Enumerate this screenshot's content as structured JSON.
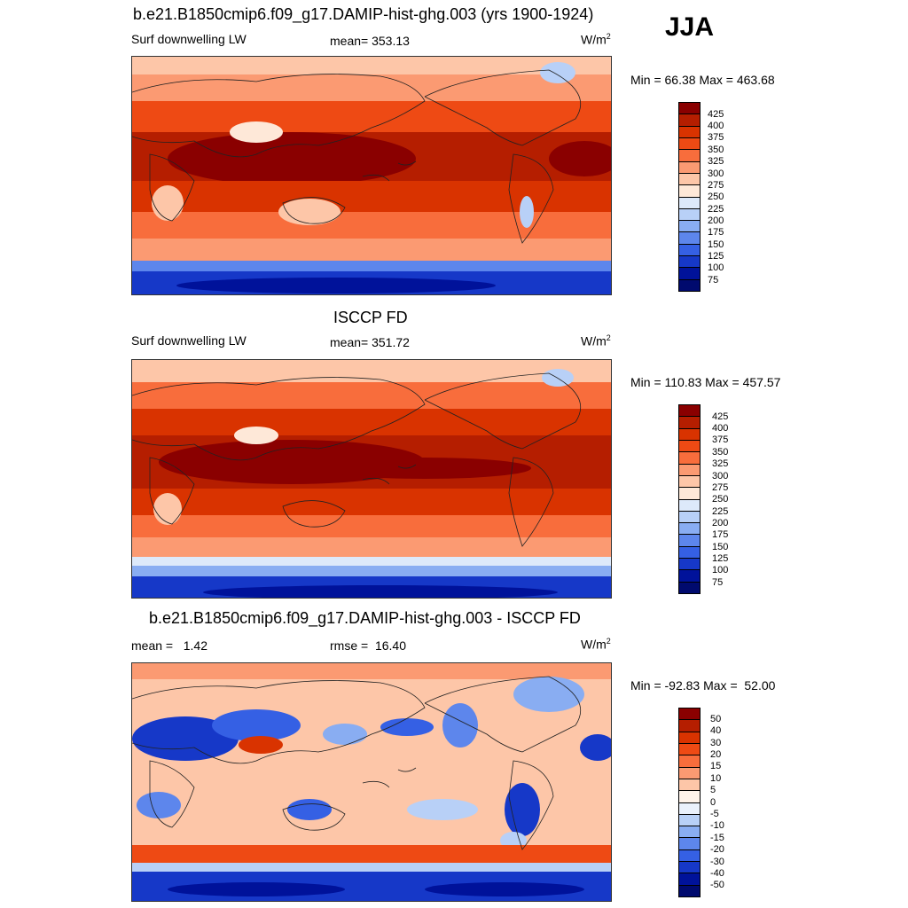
{
  "season": "JJA",
  "units_base": "W/m",
  "units_exp": "2",
  "panels": [
    {
      "title": "b.e21.B1850cmip6.f09_g17.DAMIP-hist-ghg.003 (yrs 1900-1924)",
      "left_label": "Surf downwelling LW",
      "center_label": "mean= 353.13",
      "minmax": "Min =  66.38 Max = 463.68",
      "colorbar_labels": [
        "425",
        "400",
        "375",
        "350",
        "325",
        "300",
        "275",
        "250",
        "225",
        "200",
        "175",
        "150",
        "125",
        "100",
        "75"
      ]
    },
    {
      "title": "ISCCP FD",
      "left_label": "Surf downwelling LW",
      "center_label": "mean= 351.72",
      "minmax": "Min = 110.83 Max = 457.57",
      "colorbar_labels": [
        "425",
        "400",
        "375",
        "350",
        "325",
        "300",
        "275",
        "250",
        "225",
        "200",
        "175",
        "150",
        "125",
        "100",
        "75"
      ]
    },
    {
      "title": "b.e21.B1850cmip6.f09_g17.DAMIP-hist-ghg.003 - ISCCP FD",
      "left_label": "mean =   1.42",
      "center_label": "rmse =  16.40",
      "minmax": "Min = -92.83 Max =  52.00",
      "colorbar_labels": [
        "50",
        "40",
        "30",
        "20",
        "15",
        "10",
        "5",
        "0",
        "-5",
        "-10",
        "-15",
        "-20",
        "-30",
        "-40",
        "-50"
      ]
    }
  ],
  "colors": {
    "abs_scale": [
      "#8a0000",
      "#b51e00",
      "#d93300",
      "#ee4a14",
      "#f86d3c",
      "#fb9a72",
      "#fdc6a8",
      "#fee8d8",
      "#dde9fa",
      "#b8d0f7",
      "#89adf2",
      "#5d86ec",
      "#3560e4",
      "#1638c8",
      "#00129a",
      "#000a6e"
    ],
    "diff_scale": [
      "#8a0000",
      "#b51e00",
      "#d93300",
      "#ee4a14",
      "#f86d3c",
      "#fb9a72",
      "#fdc6a8",
      "#fef3ea",
      "#eaf1fc",
      "#b8d0f7",
      "#89adf2",
      "#5d86ec",
      "#3560e4",
      "#1638c8",
      "#00129a",
      "#000a6e"
    ]
  }
}
